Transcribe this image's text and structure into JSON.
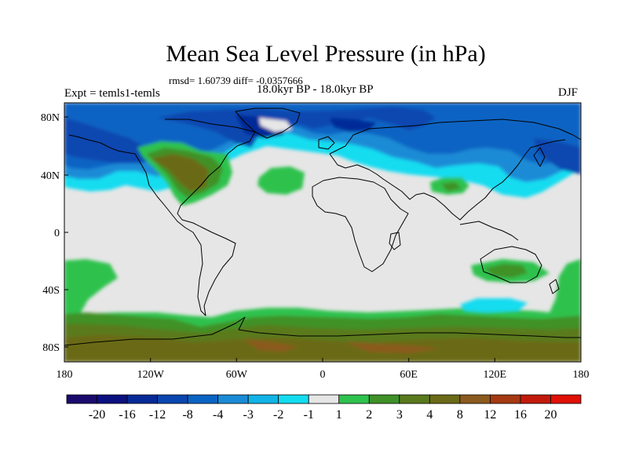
{
  "title": "Mean Sea Level Pressure (in hPa)",
  "stats": "rmsd= 1.60739 diff= -0.0357666",
  "experiment": "Expt = temls1-temls",
  "period": "18.0kyr BP - 18.0kyr BP",
  "season": "DJF",
  "map": {
    "projection": "cylindrical-equidistant",
    "lon_range": [
      -180,
      180
    ],
    "lat_range": [
      -90,
      90
    ],
    "x_ticks": [
      "180",
      "120W",
      "60W",
      "0",
      "60E",
      "120E",
      "180"
    ],
    "y_ticks": [
      "80N",
      "40N",
      "0",
      "40S",
      "80S"
    ],
    "background_value_color": "#e6e6e6"
  },
  "colorbar": {
    "colors": [
      "#1b0a6e",
      "#0a117f",
      "#052a97",
      "#0a46b0",
      "#0a64c3",
      "#1a8bd6",
      "#12b3e6",
      "#14dcf0",
      "#e6e6e6",
      "#2ec24e",
      "#3f9128",
      "#5a7a1e",
      "#6b6a18",
      "#8b5a1e",
      "#a53a12",
      "#c21a0a",
      "#e01005"
    ],
    "labels": [
      "-20",
      "-16",
      "-12",
      "-8",
      "-4",
      "-3",
      "-2",
      "-1",
      "1",
      "2",
      "3",
      "4",
      "8",
      "12",
      "16",
      "20"
    ]
  }
}
